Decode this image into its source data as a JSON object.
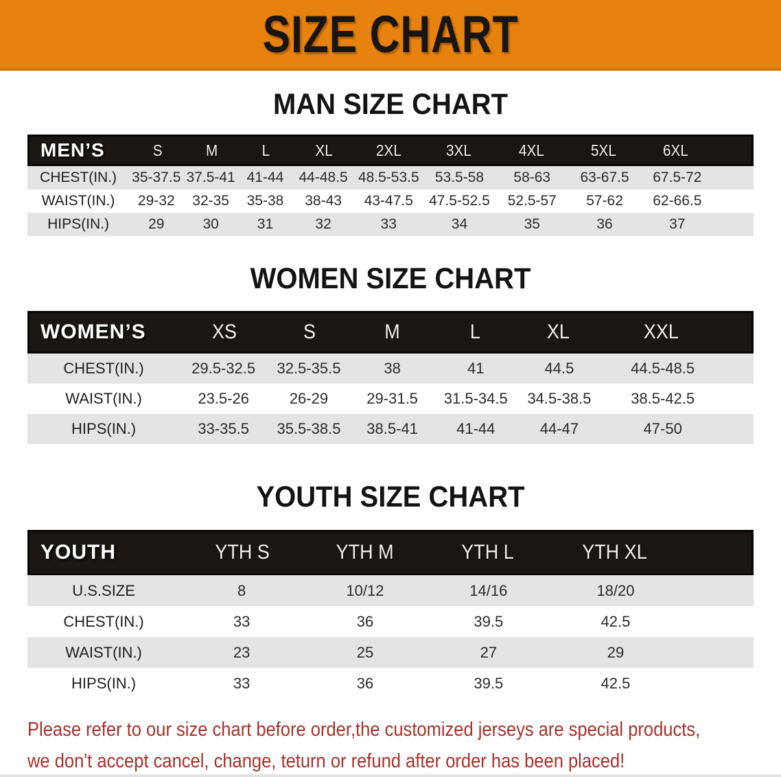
{
  "banner": {
    "title": "SIZE CHART"
  },
  "sections": [
    {
      "id": "men",
      "title": "MAN SIZE CHART",
      "group_label": "MEN’S",
      "columns": [
        "S",
        "M",
        "L",
        "XL",
        "2XL",
        "3XL",
        "4XL",
        "5XL",
        "6XL"
      ],
      "rows": [
        {
          "label": "CHEST(IN.)",
          "values": [
            "35-37.5",
            "37.5-41",
            "41-44",
            "44-48.5",
            "48.5-53.5",
            "53.5-58",
            "58-63",
            "63-67.5",
            "67.5-72"
          ]
        },
        {
          "label": "WAIST(IN.)",
          "values": [
            "29-32",
            "32-35",
            "35-38",
            "38-43",
            "43-47.5",
            "47.5-52.5",
            "52.5-57",
            "57-62",
            "62-66.5"
          ]
        },
        {
          "label": "HIPS(IN.)",
          "values": [
            "29",
            "30",
            "31",
            "32",
            "33",
            "34",
            "35",
            "36",
            "37"
          ]
        }
      ]
    },
    {
      "id": "women",
      "title": "WOMEN SIZE CHART",
      "group_label": "WOMEN’S",
      "columns": [
        "XS",
        "S",
        "M",
        "L",
        "XL",
        "XXL"
      ],
      "rows": [
        {
          "label": "CHEST(IN.)",
          "values": [
            "29.5-32.5",
            "32.5-35.5",
            "38",
            "41",
            "44.5",
            "44.5-48.5"
          ]
        },
        {
          "label": "WAIST(IN.)",
          "values": [
            "23.5-26",
            "26-29",
            "29-31.5",
            "31.5-34.5",
            "34.5-38.5",
            "38.5-42.5"
          ]
        },
        {
          "label": "HIPS(IN.)",
          "values": [
            "33-35.5",
            "35.5-38.5",
            "38.5-41",
            "41-44",
            "44-47",
            "47-50"
          ]
        }
      ]
    },
    {
      "id": "youth",
      "title": "YOUTH SIZE CHART",
      "group_label": "YOUTH",
      "columns": [
        "YTH S",
        "YTH M",
        "YTH L",
        "YTH XL"
      ],
      "rows": [
        {
          "label": "U.S.SIZE",
          "values": [
            "8",
            "10/12",
            "14/16",
            "18/20"
          ]
        },
        {
          "label": "CHEST(IN.)",
          "values": [
            "33",
            "36",
            "39.5",
            "42.5"
          ]
        },
        {
          "label": "WAIST(IN.)",
          "values": [
            "23",
            "25",
            "27",
            "29"
          ]
        },
        {
          "label": "HIPS(IN.)",
          "values": [
            "33",
            "36",
            "39.5",
            "42.5"
          ]
        }
      ]
    }
  ],
  "disclaimer": {
    "lines": [
      "Please refer to our size chart before order,the customized jerseys are special products,",
      "we don't accept cancel, change, teturn or refund after order has been placed!"
    ]
  },
  "colors": {
    "banner_orange": "#E8820E",
    "band_black": "#1B1611",
    "stripe_gray": "#E5E4E2",
    "row_white": "#FFFFFF",
    "disclaimer_red": "#A93029",
    "text_dark": "#2A2A2A"
  }
}
